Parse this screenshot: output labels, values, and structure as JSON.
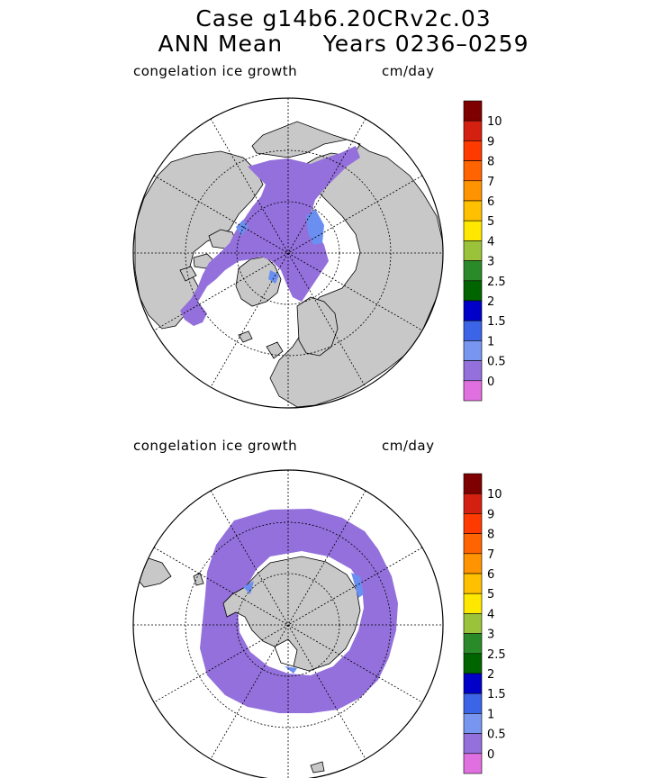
{
  "title": {
    "line1": "Case g14b6.20CRv2c.03",
    "line2_left": "ANN Mean",
    "line2_right": "Years 0236–0259"
  },
  "panels": [
    {
      "hemisphere": "north",
      "variable_label": "congelation ice growth",
      "units_label": "cm/day"
    },
    {
      "hemisphere": "south",
      "variable_label": "congelation ice growth",
      "units_label": "cm/day"
    }
  ],
  "colorbar": {
    "levels": [
      {
        "label": "10",
        "color": "#7f0000"
      },
      {
        "label": "9",
        "color": "#d42010"
      },
      {
        "label": "8",
        "color": "#ff3a00"
      },
      {
        "label": "7",
        "color": "#ff6400"
      },
      {
        "label": "6",
        "color": "#ff9400"
      },
      {
        "label": "5",
        "color": "#ffc000"
      },
      {
        "label": "4",
        "color": "#ffe800"
      },
      {
        "label": "3",
        "color": "#9ac23a"
      },
      {
        "label": "2.5",
        "color": "#2a8a2a"
      },
      {
        "label": "2",
        "color": "#006400"
      },
      {
        "label": "1.5",
        "color": "#0000c8"
      },
      {
        "label": "1",
        "color": "#3c64e6"
      },
      {
        "label": "0.5",
        "color": "#7896f0"
      },
      {
        "label": "0",
        "color": "#9370db"
      },
      {
        "label": "",
        "color": "#e070e0"
      }
    ]
  },
  "colors": {
    "land": "#c8c8c8",
    "ice_growth_low": "#9370db",
    "ice_growth_mid": "#6a8ff0",
    "ocean": "#ffffff"
  }
}
